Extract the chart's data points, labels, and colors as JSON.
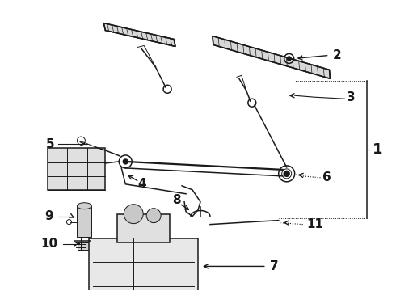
{
  "background_color": "#ffffff",
  "line_color": "#1a1a1a",
  "fig_width": 4.9,
  "fig_height": 3.6,
  "dpi": 100,
  "label_fontsize": 11,
  "label_bold": true
}
